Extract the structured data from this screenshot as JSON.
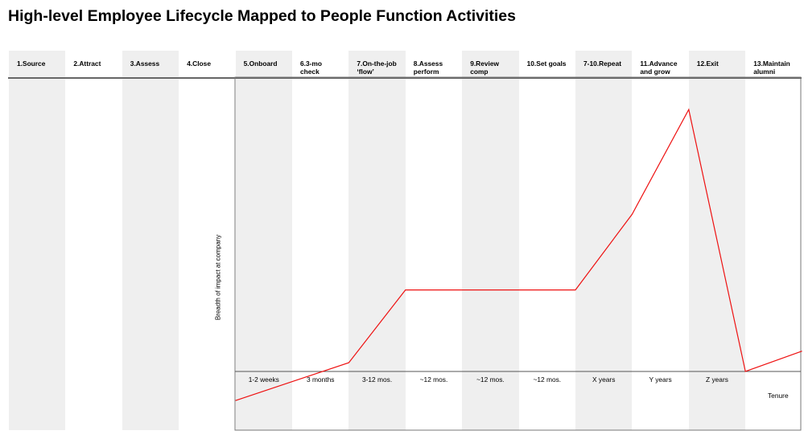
{
  "title": "High-level Employee Lifecycle Mapped to People Function Activities",
  "stages": [
    {
      "label": "1.Source",
      "shaded": true
    },
    {
      "label": "2.Attract",
      "shaded": false
    },
    {
      "label": "3.Assess",
      "shaded": true
    },
    {
      "label": "4.Close",
      "shaded": false
    },
    {
      "label": "5.Onboard",
      "shaded": true
    },
    {
      "label": "6.3-mo\ncheck",
      "shaded": false
    },
    {
      "label": "7.On-the-job\n‘flow’",
      "shaded": true
    },
    {
      "label": "8.Assess\nperform",
      "shaded": false
    },
    {
      "label": "9.Review\ncomp",
      "shaded": true
    },
    {
      "label": "10.Set goals",
      "shaded": false
    },
    {
      "label": "7-10.Repeat",
      "shaded": true
    },
    {
      "label": "11.Advance\nand grow",
      "shaded": false
    },
    {
      "label": "12.Exit",
      "shaded": true
    },
    {
      "label": "13.Maintain\nalumni",
      "shaded": false
    }
  ],
  "chart": {
    "ylabel": "Breadth of impact at company",
    "xlabel": "Tenure",
    "tenure_ticks": [
      "1-2 weeks",
      "3 months",
      "3-12 mos.",
      "~12 mos.",
      "~12 mos.",
      "~12 mos.",
      "X years",
      "Y years",
      "Z years"
    ],
    "line_color": "#ee1111",
    "curve": [
      {
        "stage": 4,
        "impact": -0.1
      },
      {
        "stage": 6,
        "impact": 0.03
      },
      {
        "stage": 7,
        "impact": 0.28
      },
      {
        "stage": 10,
        "impact": 0.28
      },
      {
        "stage": 11,
        "impact": 0.54
      },
      {
        "stage": 12,
        "impact": 0.9
      },
      {
        "stage": 13,
        "impact": 0.0
      },
      {
        "stage": 14,
        "impact": 0.07
      }
    ]
  }
}
